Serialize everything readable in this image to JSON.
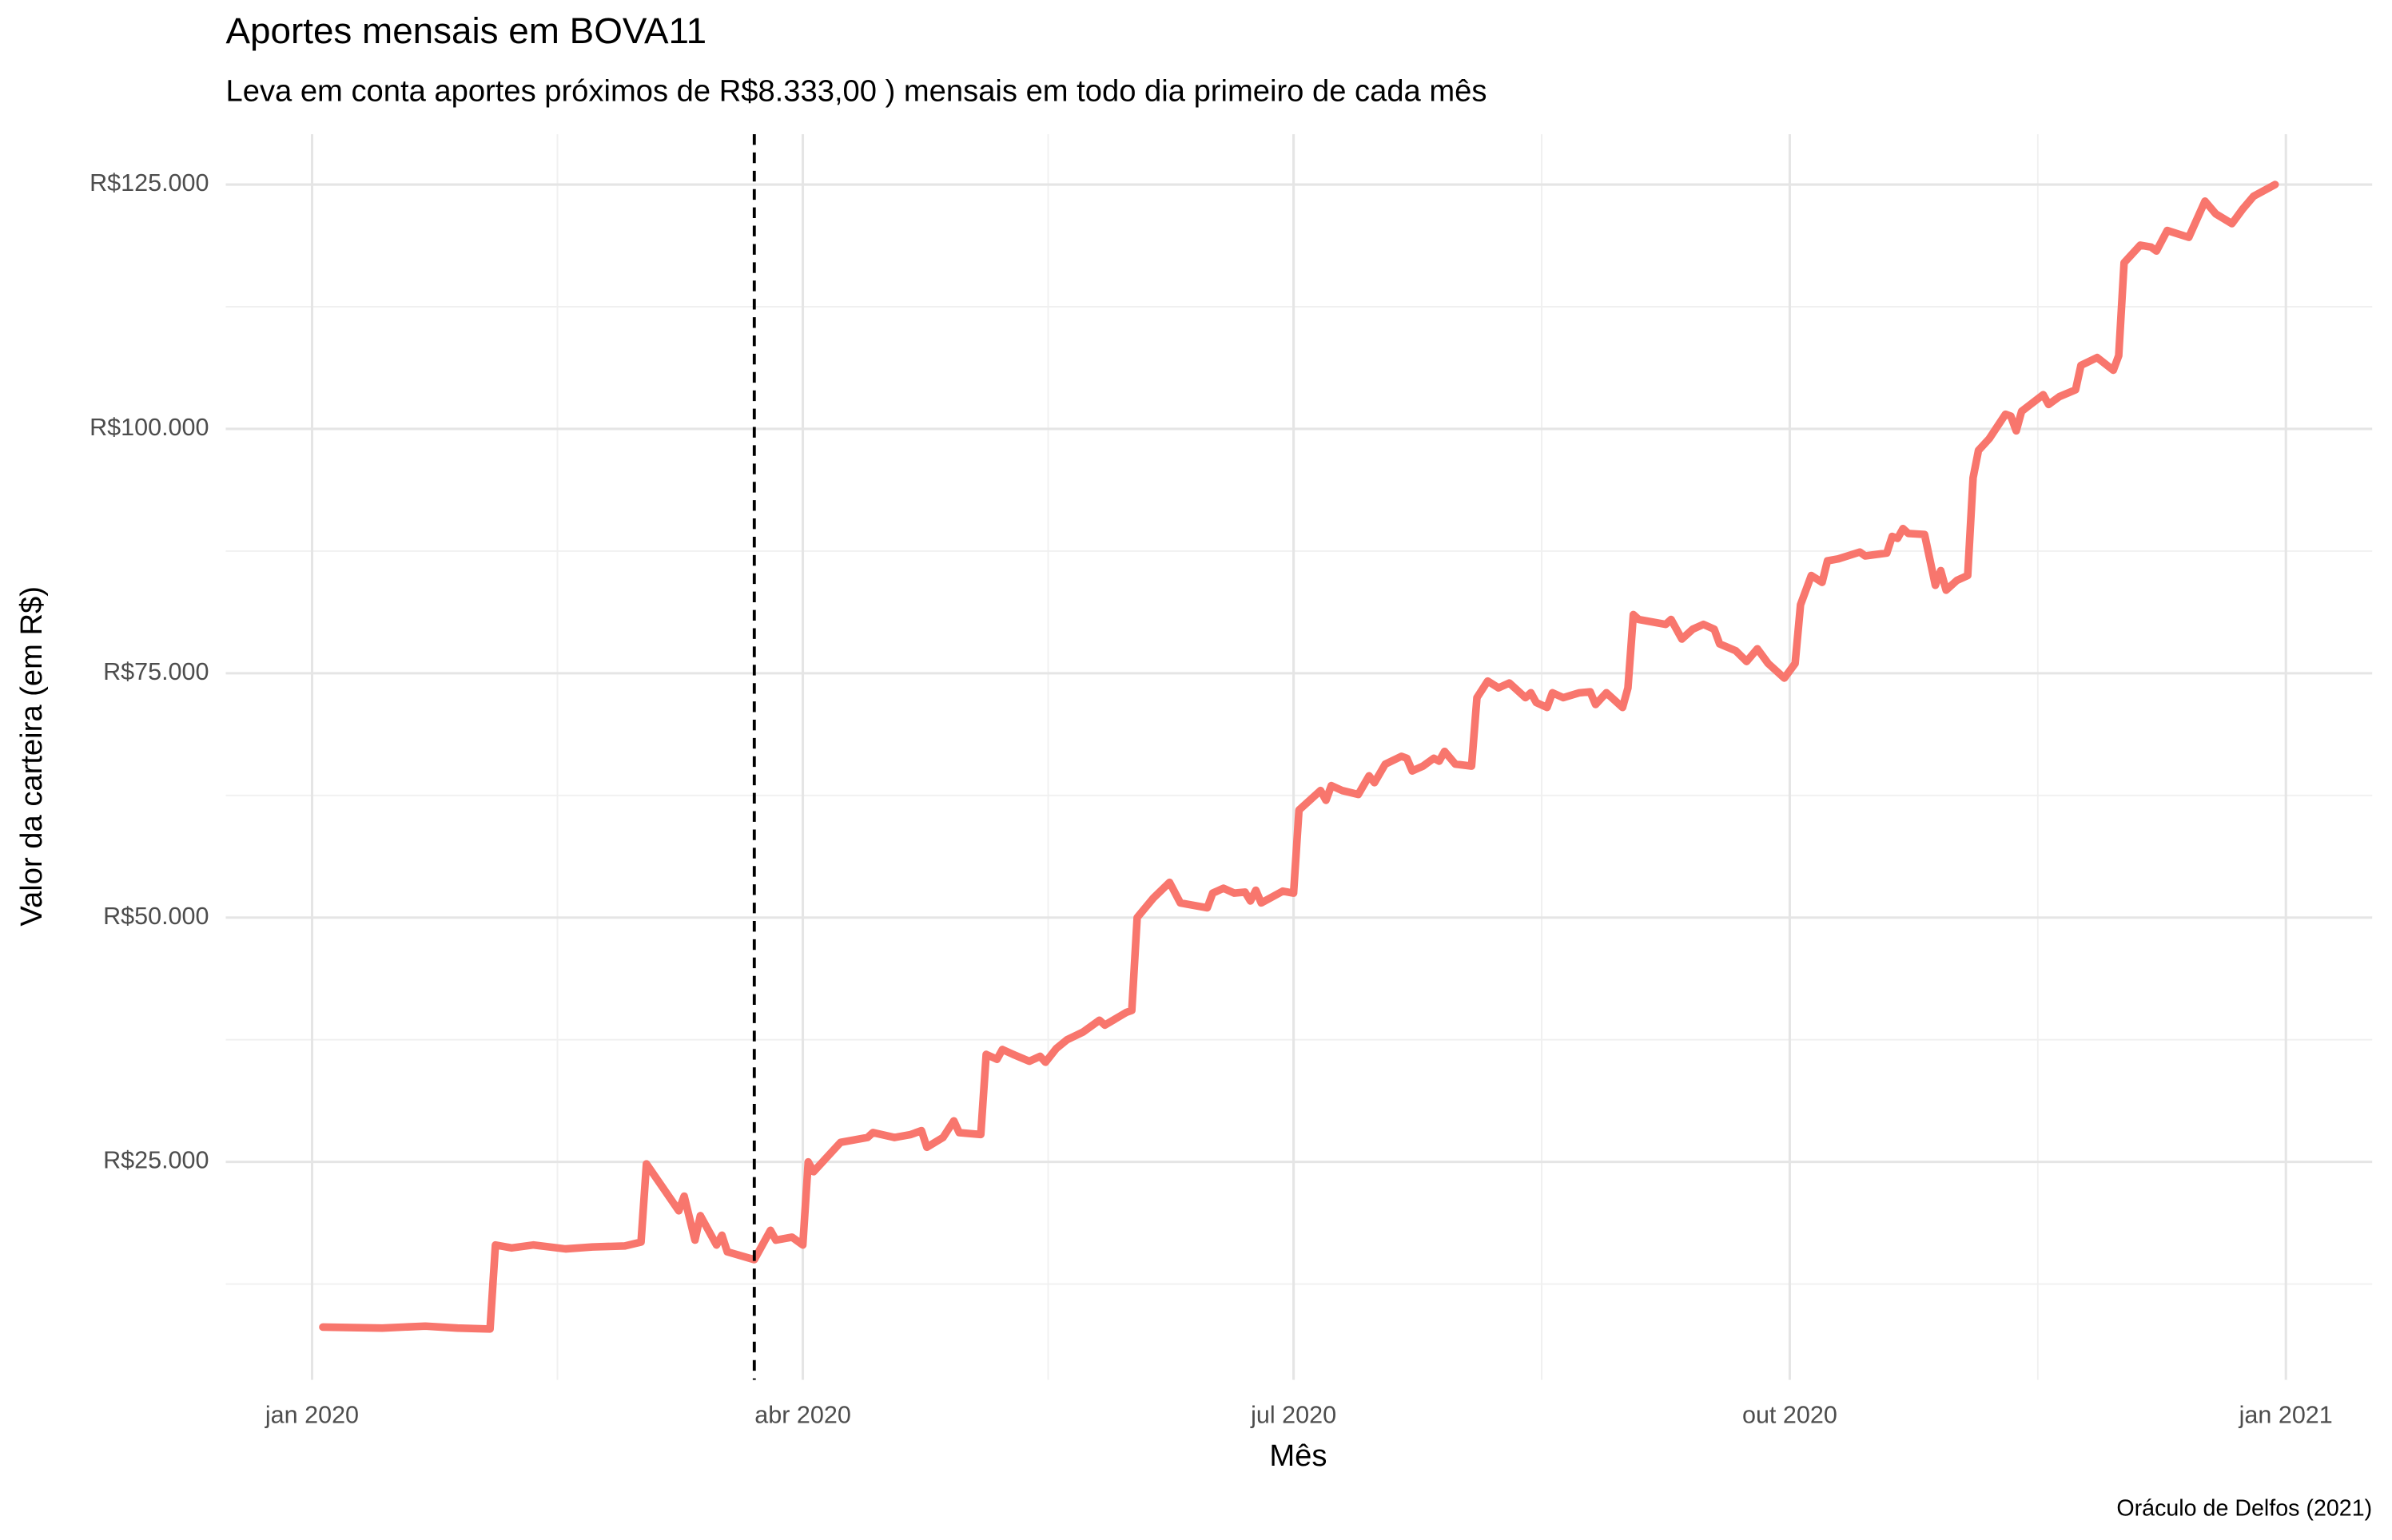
{
  "chart_data": {
    "type": "line",
    "title": "Aportes mensais em BOVA11",
    "subtitle": "Leva em conta aportes próximos de R$8.333,00 ) mensais em todo dia primeiro de cada mês",
    "x_label": "Mês",
    "y_label": "Valor da carteira (em R$)",
    "caption": "Oráculo de Delfos (2021)",
    "xlim": [
      -16,
      382
    ],
    "ylim": [
      2700,
      130150
    ],
    "xticks": [
      {
        "value": 0,
        "label": "jan 2020"
      },
      {
        "value": 91,
        "label": "abr 2020"
      },
      {
        "value": 182,
        "label": "jul 2020"
      },
      {
        "value": 274,
        "label": "out 2020"
      },
      {
        "value": 366,
        "label": "jan 2021"
      }
    ],
    "x_minor_ticks": [
      45.5,
      136.5,
      228,
      320
    ],
    "yticks": [
      {
        "value": 25000,
        "label": "R$25.000"
      },
      {
        "value": 50000,
        "label": "R$50.000"
      },
      {
        "value": 75000,
        "label": "R$75.000"
      },
      {
        "value": 100000,
        "label": "R$100.000"
      },
      {
        "value": 125000,
        "label": "R$125.000"
      }
    ],
    "y_minor_ticks": [
      12500,
      37500,
      62500,
      87500,
      112500
    ],
    "grid": true,
    "vline_x": 82,
    "series": [
      {
        "name": "Valor da carteira",
        "color": "#F8766D",
        "x": [
          2,
          13,
          21,
          27,
          33,
          34,
          37,
          41,
          47,
          52,
          58,
          61,
          62,
          68,
          69,
          71,
          72,
          75,
          76,
          77,
          82,
          85,
          86,
          89,
          91,
          92,
          93,
          98,
          103,
          104,
          108,
          111,
          113,
          114,
          117,
          119,
          120,
          124,
          125,
          127,
          128,
          130,
          133,
          135,
          136,
          138,
          140,
          143,
          146,
          147,
          151,
          152,
          153,
          156,
          159,
          161,
          166,
          167,
          169,
          171,
          173,
          174,
          175,
          176,
          180,
          182,
          183,
          185,
          187,
          188,
          189,
          191,
          194,
          196,
          197,
          199,
          202,
          203,
          204,
          206,
          208,
          209,
          210,
          212,
          215,
          216,
          218,
          220,
          222,
          225,
          226,
          227,
          229,
          230,
          232,
          235,
          237,
          238,
          240,
          243,
          244,
          245,
          246,
          251,
          252,
          254,
          256,
          258,
          260,
          261,
          264,
          266,
          268,
          270,
          273,
          275,
          276,
          278,
          280,
          281,
          283,
          287,
          288,
          292,
          293,
          294,
          295,
          296,
          299,
          301,
          302,
          303,
          305,
          307,
          308,
          309,
          311,
          314,
          315,
          316,
          317,
          321,
          322,
          324,
          327,
          328,
          331,
          334,
          335,
          336,
          339,
          341,
          342,
          344,
          348,
          351,
          353,
          356,
          358,
          360,
          364
        ],
        "values": [
          8100,
          8000,
          8200,
          8000,
          7900,
          16500,
          16200,
          16500,
          16100,
          16300,
          16400,
          16800,
          24800,
          20000,
          21500,
          17000,
          19500,
          16500,
          17500,
          15800,
          15000,
          18000,
          17000,
          17300,
          16500,
          25000,
          24000,
          27000,
          27500,
          28000,
          27500,
          27800,
          28200,
          26500,
          27500,
          29200,
          28000,
          27800,
          36000,
          35500,
          36500,
          36000,
          35300,
          35800,
          35200,
          36600,
          37500,
          38300,
          39500,
          39000,
          40300,
          40500,
          50000,
          52000,
          53600,
          51500,
          51000,
          52500,
          53000,
          52500,
          52600,
          51700,
          52800,
          51500,
          52700,
          52500,
          61000,
          62000,
          63000,
          62000,
          63500,
          63000,
          62600,
          64500,
          63800,
          65700,
          66500,
          66300,
          65000,
          65500,
          66300,
          66000,
          67000,
          65700,
          65500,
          72500,
          74200,
          73500,
          74000,
          72500,
          73000,
          72000,
          71500,
          73000,
          72500,
          73000,
          73100,
          71800,
          73000,
          71500,
          73500,
          81000,
          80500,
          80000,
          80500,
          78500,
          79500,
          80000,
          79500,
          78000,
          77300,
          76200,
          77500,
          76000,
          74500,
          76000,
          82000,
          85000,
          84300,
          86500,
          86700,
          87400,
          87000,
          87300,
          89000,
          88800,
          89800,
          89300,
          89200,
          84000,
          85500,
          83500,
          84500,
          85000,
          95000,
          97800,
          99000,
          101500,
          101300,
          99800,
          101800,
          103500,
          102500,
          103300,
          104000,
          106500,
          107300,
          106000,
          107500,
          117000,
          118800,
          118600,
          118200,
          120300,
          119600,
          123300,
          122000,
          121000,
          122500,
          123800,
          125000
        ]
      }
    ]
  }
}
